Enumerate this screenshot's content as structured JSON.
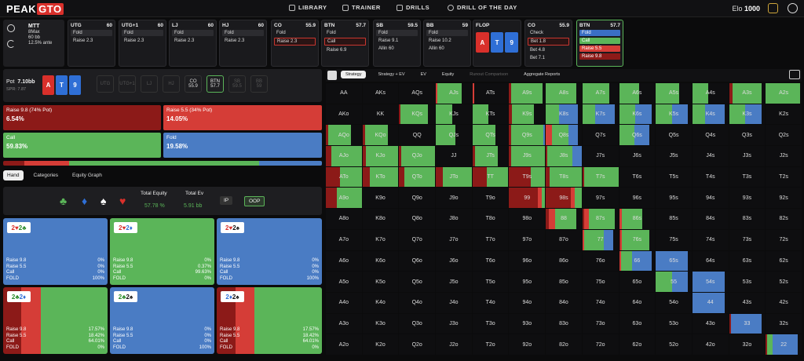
{
  "brand": {
    "peak": "PEAK",
    "gto": "GTO"
  },
  "nav": [
    {
      "label": "LIBRARY",
      "icon": "library-icon"
    },
    {
      "label": "TRAINER",
      "icon": "trainer-icon"
    },
    {
      "label": "DRILLS",
      "icon": "drills-icon"
    },
    {
      "label": "DRILL OF THE DAY",
      "icon": "plus-circle-icon"
    }
  ],
  "elo": {
    "label": "Elo",
    "value": "1000"
  },
  "game": {
    "type": "MTT",
    "format": "8Max",
    "stack": "60 bb",
    "ante": "12.5% ante"
  },
  "positions": [
    {
      "name": "UTG",
      "stack": "60",
      "acts": [
        {
          "t": "Fold",
          "c": "act"
        },
        {
          "t": "Raise 2.3",
          "c": "txt"
        }
      ]
    },
    {
      "name": "UTG+1",
      "stack": "60",
      "acts": [
        {
          "t": "Fold",
          "c": "act"
        },
        {
          "t": "Raise 2.3",
          "c": "txt"
        }
      ]
    },
    {
      "name": "LJ",
      "stack": "60",
      "acts": [
        {
          "t": "Fold",
          "c": "act"
        },
        {
          "t": "Raise 2.3",
          "c": "txt"
        }
      ]
    },
    {
      "name": "HJ",
      "stack": "60",
      "acts": [
        {
          "t": "Fold",
          "c": "act"
        },
        {
          "t": "Raise 2.3",
          "c": "txt"
        }
      ]
    },
    {
      "name": "CO",
      "stack": "55.9",
      "acts": [
        {
          "t": "Fold",
          "c": "txt"
        },
        {
          "t": "Raise 2.3",
          "c": "act r"
        }
      ]
    },
    {
      "name": "BTN",
      "stack": "57.7",
      "acts": [
        {
          "t": "Fold",
          "c": "txt"
        },
        {
          "t": "Call",
          "c": "act r"
        },
        {
          "t": "Raise 6.9",
          "c": "txt"
        }
      ]
    },
    {
      "name": "SB",
      "stack": "59.5",
      "acts": [
        {
          "t": "Fold",
          "c": "act"
        },
        {
          "t": "Raise 9.1",
          "c": "txt"
        },
        {
          "t": "Allin 60",
          "c": "txt"
        }
      ]
    },
    {
      "name": "BB",
      "stack": "59",
      "acts": [
        {
          "t": "Fold",
          "c": "act"
        },
        {
          "t": "Raise 10.2",
          "c": "txt"
        },
        {
          "t": "Allin 60",
          "c": "txt"
        }
      ]
    },
    {
      "name": "CO",
      "stack": "55.9",
      "acts": [
        {
          "t": "Check",
          "c": "txt"
        },
        {
          "t": "Bet 1.8",
          "c": "act r"
        },
        {
          "t": "Bet 4.8",
          "c": "txt"
        },
        {
          "t": "Bet 7.1",
          "c": "txt"
        }
      ]
    },
    {
      "name": "BTN",
      "stack": "57.7",
      "acts": [
        {
          "t": "Fold",
          "c": "act sel"
        },
        {
          "t": "Call",
          "c": "act g"
        },
        {
          "t": "Raise 5.5",
          "c": "act red"
        },
        {
          "t": "Raise 9.8",
          "c": "act dk"
        }
      ]
    }
  ],
  "flop": {
    "label": "FLOP",
    "cards": [
      {
        "r": "A",
        "c": "#d9302b"
      },
      {
        "r": "T",
        "c": "#2f6fd6"
      },
      {
        "r": "9",
        "c": "#2f6fd6"
      }
    ]
  },
  "pot": {
    "label": "Pot",
    "value": "7.10bb",
    "spr": "SPR: 7.87"
  },
  "board": [
    {
      "r": "A",
      "c": "#d9302b"
    },
    {
      "r": "T",
      "c": "#2f6fd6"
    },
    {
      "r": "9",
      "c": "#2f6fd6"
    }
  ],
  "seats": [
    {
      "n": "UTG",
      "v": "",
      "c": "pos"
    },
    {
      "n": "UTG+1",
      "v": "",
      "c": "pos"
    },
    {
      "n": "LJ",
      "v": "",
      "c": "pos"
    },
    {
      "n": "HJ",
      "v": "",
      "c": "pos"
    },
    {
      "n": "CO",
      "v": "55.9",
      "c": "pos act"
    },
    {
      "n": "BTN",
      "v": "57.7",
      "c": "pos btn"
    },
    {
      "n": "SB",
      "v": "59.5",
      "c": "pos"
    },
    {
      "n": "BB",
      "v": "59",
      "c": "pos"
    }
  ],
  "actions": [
    {
      "label": "Raise 9.8 (74% Pot)",
      "pct": "6.54%",
      "color": "#8c1a18"
    },
    {
      "label": "Raise 5.5 (34% Pot)",
      "pct": "14.05%",
      "color": "#d53d37"
    },
    {
      "label": "Call",
      "pct": "59.83%",
      "color": "#5bb559"
    },
    {
      "label": "Fold",
      "pct": "19.58%",
      "color": "#4a7cc4"
    }
  ],
  "freq_bar": [
    6.54,
    14.05,
    59.83,
    19.58
  ],
  "hand_tabs": [
    "Hand",
    "Categories",
    "Equity Graph"
  ],
  "equity": {
    "label": "Total Equity",
    "value": "57.78 %"
  },
  "ev": {
    "label": "Total Ev",
    "value": "5.91 bb"
  },
  "ip": "IP",
  "oop": "OOP",
  "suits": [
    {
      "s": "♣",
      "c": "#5bb559"
    },
    {
      "s": "♦",
      "c": "#2f6fd6"
    },
    {
      "s": "♠",
      "c": "#ffffff"
    },
    {
      "s": "♥",
      "c": "#d9302b"
    }
  ],
  "combos": [
    {
      "c1": "2♥",
      "c2": "2♣",
      "rows": [
        [
          "Raise 9.8",
          "0%"
        ],
        [
          "Raise 5.5",
          "0%"
        ],
        [
          "Call",
          "0%"
        ],
        [
          "FOLD",
          "100%"
        ]
      ],
      "mix": [
        0,
        0,
        0,
        100
      ]
    },
    {
      "c1": "2♥",
      "c2": "2♦",
      "rows": [
        [
          "Raise 9.8",
          "0%"
        ],
        [
          "Raise 5.5",
          "0.37%"
        ],
        [
          "Call",
          "99.63%"
        ],
        [
          "FOLD",
          "0%"
        ]
      ],
      "mix": [
        0,
        0.37,
        99.63,
        0
      ]
    },
    {
      "c1": "2♥",
      "c2": "2♠",
      "rows": [
        [
          "Raise 9.8",
          "0%"
        ],
        [
          "Raise 5.5",
          "0%"
        ],
        [
          "Call",
          "0%"
        ],
        [
          "FOLD",
          "100%"
        ]
      ],
      "mix": [
        0,
        0,
        0,
        100
      ]
    },
    {
      "c1": "2♣",
      "c2": "2♦",
      "rows": [
        [
          "Raise 9.8",
          "17.57%"
        ],
        [
          "Raise 5.5",
          "18.42%"
        ],
        [
          "Call",
          "64.01%"
        ],
        [
          "FOLD",
          "0%"
        ]
      ],
      "mix": [
        17.57,
        18.42,
        64.01,
        0
      ]
    },
    {
      "c1": "2♣",
      "c2": "2♠",
      "rows": [
        [
          "Raise 9.8",
          "0%"
        ],
        [
          "Raise 5.5",
          "0%"
        ],
        [
          "Call",
          "0%"
        ],
        [
          "FOLD",
          "100%"
        ]
      ],
      "mix": [
        0,
        0,
        0,
        100
      ]
    },
    {
      "c1": "2♦",
      "c2": "2♠",
      "rows": [
        [
          "Raise 9.8",
          "17.57%"
        ],
        [
          "Raise 5.5",
          "18.42%"
        ],
        [
          "Call",
          "64.01%"
        ],
        [
          "FOLD",
          "0%"
        ]
      ],
      "mix": [
        17.57,
        18.42,
        64.01,
        0
      ]
    }
  ],
  "grid_tabs": [
    "Strategy",
    "Strategy + EV",
    "EV",
    "Equity",
    "Runout Comparison",
    "Aggregate Reports"
  ],
  "ranks": [
    "A",
    "K",
    "Q",
    "J",
    "T",
    "9",
    "8",
    "7",
    "6",
    "5",
    "4",
    "3",
    "2"
  ],
  "colors": {
    "r98": "#8c1a18",
    "r55": "#d53d37",
    "call": "#5bb559",
    "fold": "#4a7cc4"
  },
  "mixes": {
    "AJs": [
      0,
      5,
      90,
      0,
      0.75
    ],
    "ATs": [
      0,
      10,
      0,
      0,
      0.55
    ],
    "A9s": [
      5,
      0,
      90,
      0,
      0.97
    ],
    "A8s": [
      0,
      0,
      100,
      0,
      0.85
    ],
    "A7s": [
      0,
      0,
      100,
      0,
      0.75
    ],
    "A6s": [
      0,
      0,
      100,
      0,
      0.55
    ],
    "A5s": [
      0,
      0,
      100,
      0,
      0.65
    ],
    "A4s": [
      0,
      0,
      100,
      0,
      0.45
    ],
    "A3s": [
      10,
      0,
      90,
      0,
      0.9
    ],
    "A2s": [
      0,
      0,
      100,
      0,
      0.95
    ],
    "AKo": [
      0,
      0,
      0,
      0,
      0
    ],
    "KQs": [
      5,
      0,
      95,
      0,
      0.8
    ],
    "KJs": [
      0,
      0,
      100,
      0,
      0.45
    ],
    "KTs": [
      0,
      0,
      100,
      0,
      0.45
    ],
    "K9s": [
      10,
      0,
      90,
      0,
      0.7
    ],
    "K8s": [
      0,
      0,
      40,
      60,
      0.9
    ],
    "K7s": [
      0,
      0,
      40,
      60,
      0.9
    ],
    "K6s": [
      0,
      0,
      50,
      50,
      0.9
    ],
    "K5s": [
      0,
      0,
      50,
      50,
      0.9
    ],
    "K4s": [
      0,
      0,
      40,
      60,
      0.9
    ],
    "K3s": [
      0,
      0,
      50,
      50,
      0.9
    ],
    "AQo": [
      10,
      0,
      90,
      0,
      0.7
    ],
    "KQo": [
      10,
      0,
      90,
      0,
      0.7
    ],
    "QJs": [
      0,
      0,
      100,
      0,
      0.55
    ],
    "QTs": [
      0,
      0,
      100,
      0,
      0.65
    ],
    "Q9s": [
      5,
      0,
      90,
      5,
      1
    ],
    "Q8s": [
      0,
      20,
      50,
      30,
      0.9
    ],
    "Q6s": [
      0,
      0,
      50,
      50,
      0.85
    ],
    "AJo": [
      15,
      0,
      85,
      0,
      1
    ],
    "KJo": [
      10,
      0,
      90,
      0,
      1
    ],
    "QJo": [
      5,
      0,
      95,
      0,
      1
    ],
    "JTs": [
      10,
      0,
      90,
      0,
      0.7
    ],
    "J9s": [
      5,
      0,
      95,
      0,
      1
    ],
    "J8s": [
      5,
      0,
      70,
      25,
      1
    ],
    "ATo": [
      40,
      0,
      60,
      0,
      1
    ],
    "KTo": [
      20,
      0,
      80,
      0,
      1
    ],
    "QTo": [
      15,
      0,
      85,
      0,
      1
    ],
    "JTo": [
      20,
      0,
      80,
      0,
      1
    ],
    "TT": [
      40,
      0,
      60,
      0,
      1
    ],
    "T9s": [
      60,
      0,
      40,
      0,
      1
    ],
    "T8s": [
      10,
      0,
      90,
      0,
      1
    ],
    "T7s": [
      5,
      0,
      95,
      0,
      1
    ],
    "A9o": [
      30,
      0,
      70,
      0,
      1
    ],
    "99": [
      80,
      10,
      10,
      0,
      1
    ],
    "98s": [
      70,
      10,
      20,
      0,
      1
    ],
    "88": [
      10,
      20,
      70,
      0,
      0.85
    ],
    "87s": [
      5,
      15,
      80,
      0,
      0.9
    ],
    "86s": [
      0,
      10,
      90,
      0,
      0.65
    ],
    "77": [
      0,
      5,
      65,
      30,
      0.85
    ],
    "76s": [
      5,
      5,
      90,
      0,
      0.85
    ],
    "66": [
      0,
      5,
      35,
      60,
      0.9
    ],
    "65s": [
      0,
      0,
      0,
      100,
      0.9
    ],
    "55": [
      0,
      0,
      50,
      50,
      0.9
    ],
    "54s": [
      0,
      0,
      0,
      100,
      0.9
    ],
    "44": [
      0,
      0,
      0,
      100,
      0.9
    ],
    "33": [
      5,
      0,
      0,
      95,
      0.9
    ],
    "22": [
      5,
      0,
      15,
      80,
      0.9
    ]
  }
}
